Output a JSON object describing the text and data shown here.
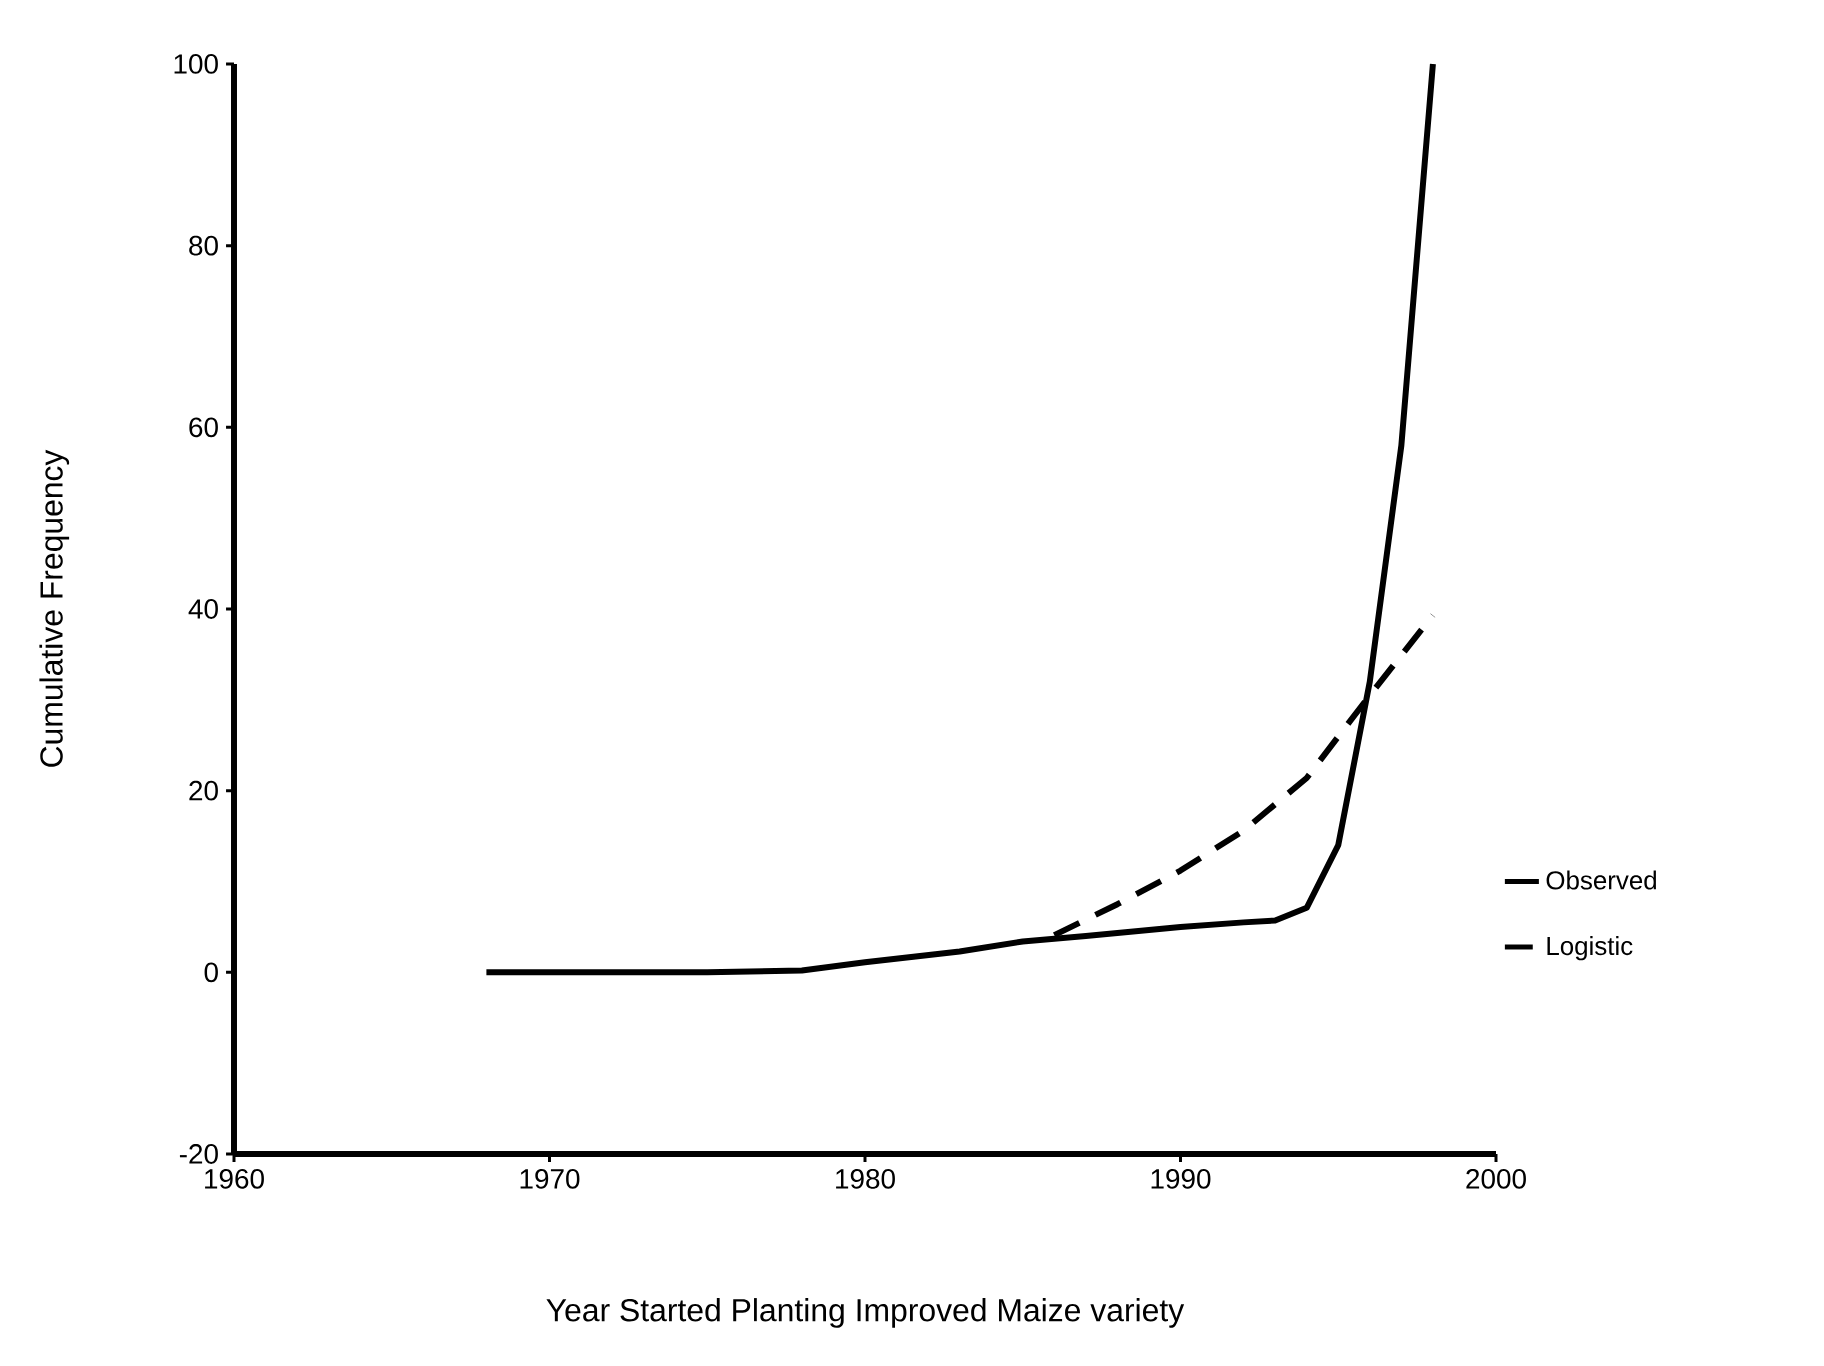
{
  "chart_data": {
    "type": "line",
    "xlabel": "Year Started Planting Improved Maize variety",
    "ylabel": "Cumulative Frequency",
    "xlim": [
      1960,
      2000
    ],
    "ylim": [
      -20,
      100
    ],
    "xticks": [
      1960,
      1970,
      1980,
      1990,
      2000
    ],
    "yticks": [
      -20,
      0,
      20,
      40,
      60,
      80,
      100
    ],
    "grid": false,
    "legend": "right",
    "marker": "none",
    "series": [
      {
        "name": "Observed",
        "color": "#000000",
        "line_style": "solid",
        "x": [
          1968,
          1975,
          1978,
          1980,
          1983,
          1985,
          1987,
          1990,
          1992,
          1993,
          1994,
          1995,
          1996,
          1997,
          1998
        ],
        "values": [
          0,
          0,
          0.2,
          1.1,
          2.3,
          3.4,
          4,
          5,
          5.5,
          5.7,
          7.1,
          14,
          32,
          58,
          100
        ]
      },
      {
        "name": "Logistic",
        "color": "#000000",
        "line_style": "dashed",
        "x": [
          1986,
          1988,
          1990,
          1992,
          1994,
          1996,
          1998
        ],
        "values": [
          4.1,
          7.5,
          11.2,
          15.6,
          21.4,
          30.5,
          39.3
        ]
      }
    ]
  }
}
